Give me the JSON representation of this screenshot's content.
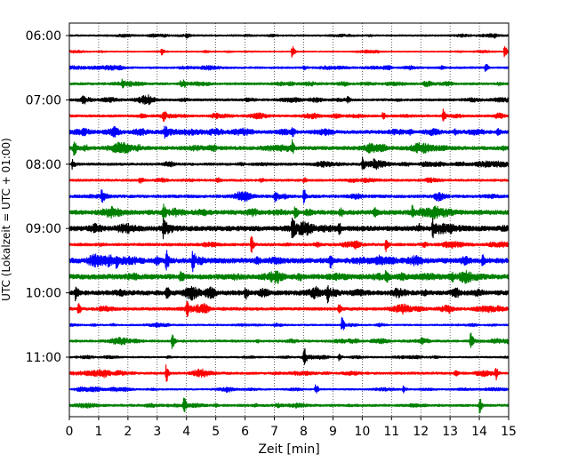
{
  "chart_data": {
    "type": "line",
    "plot_kind": "helicorder",
    "xlabel": "Zeit  [min]",
    "ylabel": "UTC (Lokalzeit = UTC + 01:00)",
    "xlim": [
      0,
      15
    ],
    "x_ticks": [
      0,
      1,
      2,
      3,
      4,
      5,
      6,
      7,
      8,
      9,
      10,
      11,
      12,
      13,
      14,
      15
    ],
    "x_tick_labels": [
      "0",
      "1",
      "2",
      "3",
      "4",
      "5",
      "6",
      "7",
      "8",
      "9",
      "10",
      "11",
      "12",
      "13",
      "14",
      "15"
    ],
    "vertical_grid": true,
    "grid_style": "dotted",
    "y_tick_labels": [
      "06:00",
      "07:00",
      "08:00",
      "09:00",
      "10:00",
      "11:00"
    ],
    "y_tick_trace_index": [
      0,
      4,
      8,
      12,
      16,
      20
    ],
    "trace_interval_minutes": 15,
    "color_cycle": [
      "#000000",
      "#ff0000",
      "#0000ff",
      "#008000"
    ],
    "series": [
      {
        "start": "06:00",
        "color": "#000000",
        "amplitude": 0.1,
        "events": [
          {
            "t": 4.0,
            "amp": 0.18
          },
          {
            "t": 14.5,
            "amp": 0.15
          }
        ]
      },
      {
        "start": "06:15",
        "color": "#ff0000",
        "amplitude": 0.07,
        "events": [
          {
            "t": 3.15,
            "amp": 0.3
          },
          {
            "t": 7.6,
            "amp": 0.75
          },
          {
            "t": 14.85,
            "amp": 0.75
          }
        ]
      },
      {
        "start": "06:30",
        "color": "#0000ff",
        "amplitude": 0.12,
        "events": [
          {
            "t": 8.0,
            "amp": 0.2
          },
          {
            "t": 14.2,
            "amp": 0.55
          }
        ]
      },
      {
        "start": "06:45",
        "color": "#008000",
        "amplitude": 0.14,
        "events": [
          {
            "t": 1.8,
            "amp": 0.45
          },
          {
            "t": 3.9,
            "amp": 0.35
          },
          {
            "t": 3.8,
            "amp": 0.3
          }
        ]
      },
      {
        "start": "07:00",
        "color": "#000000",
        "amplitude": 0.14,
        "events": [
          {
            "t": 0.45,
            "amp": 0.35
          },
          {
            "t": 9.5,
            "amp": 0.3
          }
        ]
      },
      {
        "start": "07:15",
        "color": "#ff0000",
        "amplitude": 0.14,
        "events": [
          {
            "t": 3.2,
            "amp": 0.55
          },
          {
            "t": 10.7,
            "amp": 0.35
          },
          {
            "t": 12.75,
            "amp": 0.8
          }
        ]
      },
      {
        "start": "07:30",
        "color": "#0000ff",
        "amplitude": 0.2,
        "events": [
          {
            "t": 1.5,
            "amp": 0.45
          },
          {
            "t": 3.25,
            "amp": 0.6
          },
          {
            "t": 7.6,
            "amp": 0.45
          },
          {
            "t": 14.6,
            "amp": 0.4
          }
        ]
      },
      {
        "start": "07:45",
        "color": "#008000",
        "amplitude": 0.22,
        "events": [
          {
            "t": 0.15,
            "amp": 0.6
          },
          {
            "t": 7.6,
            "amp": 0.75
          }
        ]
      },
      {
        "start": "08:00",
        "color": "#000000",
        "amplitude": 0.15,
        "events": [
          {
            "t": 0.1,
            "amp": 0.55
          },
          {
            "t": 10.0,
            "amp": 0.7
          },
          {
            "t": 10.4,
            "amp": 0.45
          }
        ]
      },
      {
        "start": "08:15",
        "color": "#ff0000",
        "amplitude": 0.14,
        "events": [
          {
            "t": 2.4,
            "amp": 0.35
          },
          {
            "t": 8.0,
            "amp": 0.3
          }
        ]
      },
      {
        "start": "08:30",
        "color": "#0000ff",
        "amplitude": 0.18,
        "events": [
          {
            "t": 1.1,
            "amp": 0.75
          },
          {
            "t": 7.0,
            "amp": 0.55
          },
          {
            "t": 8.0,
            "amp": 0.8
          }
        ]
      },
      {
        "start": "08:45",
        "color": "#008000",
        "amplitude": 0.28,
        "events": [
          {
            "t": 3.2,
            "amp": 0.9
          },
          {
            "t": 7.7,
            "amp": 0.6
          },
          {
            "t": 10.4,
            "amp": 0.7
          },
          {
            "t": 11.7,
            "amp": 0.6
          }
        ]
      },
      {
        "start": "09:00",
        "color": "#000000",
        "amplitude": 0.3,
        "events": [
          {
            "t": 3.2,
            "amp": 0.85
          },
          {
            "t": 7.6,
            "amp": 0.95
          },
          {
            "t": 9.2,
            "amp": 0.7
          },
          {
            "t": 12.4,
            "amp": 0.9
          }
        ]
      },
      {
        "start": "09:15",
        "color": "#ff0000",
        "amplitude": 0.17,
        "events": [
          {
            "t": 6.2,
            "amp": 1.0
          },
          {
            "t": 10.8,
            "amp": 0.85
          }
        ]
      },
      {
        "start": "09:30",
        "color": "#0000ff",
        "amplitude": 0.3,
        "events": [
          {
            "t": 1.6,
            "amp": 0.8
          },
          {
            "t": 3.3,
            "amp": 1.1
          },
          {
            "t": 4.2,
            "amp": 1.1
          },
          {
            "t": 8.9,
            "amp": 0.9
          },
          {
            "t": 14.1,
            "amp": 0.55
          }
        ]
      },
      {
        "start": "09:45",
        "color": "#008000",
        "amplitude": 0.3,
        "events": [
          {
            "t": 3.8,
            "amp": 0.9
          },
          {
            "t": 10.8,
            "amp": 0.75
          }
        ]
      },
      {
        "start": "10:00",
        "color": "#000000",
        "amplitude": 0.28,
        "events": [
          {
            "t": 0.2,
            "amp": 0.8
          },
          {
            "t": 3.3,
            "amp": 0.95
          },
          {
            "t": 6.0,
            "amp": 0.8
          },
          {
            "t": 8.8,
            "amp": 0.95
          }
        ]
      },
      {
        "start": "10:15",
        "color": "#ff0000",
        "amplitude": 0.18,
        "events": [
          {
            "t": 0.3,
            "amp": 0.55
          },
          {
            "t": 4.0,
            "amp": 0.75
          },
          {
            "t": 9.2,
            "amp": 0.55
          }
        ]
      },
      {
        "start": "10:30",
        "color": "#0000ff",
        "amplitude": 0.1,
        "events": [
          {
            "t": 9.3,
            "amp": 0.9
          }
        ]
      },
      {
        "start": "10:45",
        "color": "#008000",
        "amplitude": 0.14,
        "events": [
          {
            "t": 3.5,
            "amp": 0.9
          },
          {
            "t": 13.7,
            "amp": 0.95
          }
        ]
      },
      {
        "start": "11:00",
        "color": "#000000",
        "amplitude": 0.1,
        "events": [
          {
            "t": 8.0,
            "amp": 1.0
          },
          {
            "t": 9.2,
            "amp": 0.45
          }
        ]
      },
      {
        "start": "11:15",
        "color": "#ff0000",
        "amplitude": 0.14,
        "events": [
          {
            "t": 3.3,
            "amp": 1.0
          },
          {
            "t": 14.55,
            "amp": 0.75
          }
        ]
      },
      {
        "start": "11:30",
        "color": "#0000ff",
        "amplitude": 0.1,
        "events": [
          {
            "t": 8.4,
            "amp": 0.75
          },
          {
            "t": 11.4,
            "amp": 0.4
          }
        ]
      },
      {
        "start": "11:45",
        "color": "#008000",
        "amplitude": 0.14,
        "events": [
          {
            "t": 3.9,
            "amp": 0.9
          },
          {
            "t": 14.0,
            "amp": 0.9
          }
        ]
      }
    ]
  }
}
